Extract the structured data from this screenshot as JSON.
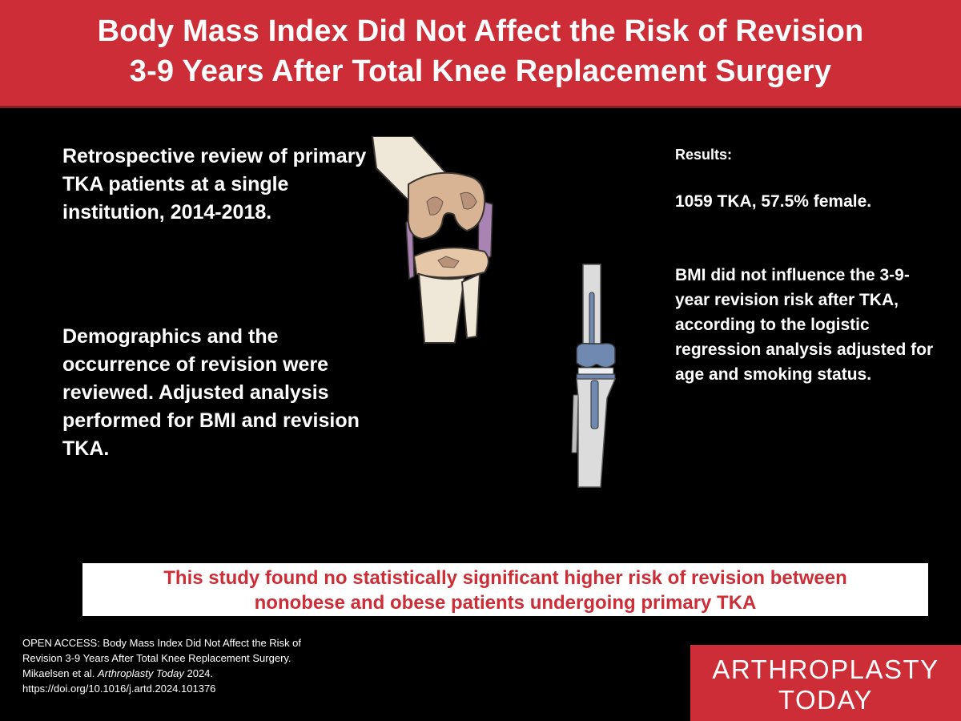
{
  "header": {
    "title_line1": "Body Mass Index Did Not Affect the Risk of Revision",
    "title_line2": "3-9 Years After Total Knee Replacement Surgery"
  },
  "methods": {
    "design": "Retrospective review of primary TKA patients at a single institution, 2014-2018.",
    "analysis": "Demographics and the occurrence of revision were reviewed. Adjusted analysis performed for BMI and revision TKA."
  },
  "results": {
    "heading": "Results:",
    "cohort": "1059 TKA, 57.5% female.",
    "finding": "BMI did not influence the 3-9-year revision risk after TKA, according to the logistic regression analysis adjusted for age and smoking status."
  },
  "conclusion": {
    "line1": "This study found no statistically significant higher risk of revision between",
    "line2": "nonobese and obese patients undergoing primary TKA"
  },
  "citation": {
    "prefix": "OPEN ACCESS: Body Mass Index Did Not Affect the Risk of Revision 3-9 Years After Total Knee Replacement Surgery.  Mikaelsen  et al.",
    "journal": "Arthroplasty Today",
    "year": " 2024.",
    "doi": "https://doi.org/10.1016/j.artd.2024.101376"
  },
  "logo": {
    "line1": "ARTHROPLASTY",
    "line2": "TODAY"
  },
  "illustrations": {
    "knee": "arthritic-knee-joint",
    "implant": "total-knee-implant"
  },
  "colors": {
    "brand_red": "#cc2d36",
    "background": "#000000",
    "bone": "#efe8d8",
    "cartilage_damage": "#c8a78c",
    "meniscus": "#a983b4",
    "implant_metal": "#dcdcdc",
    "implant_component": "#6f89b1"
  }
}
